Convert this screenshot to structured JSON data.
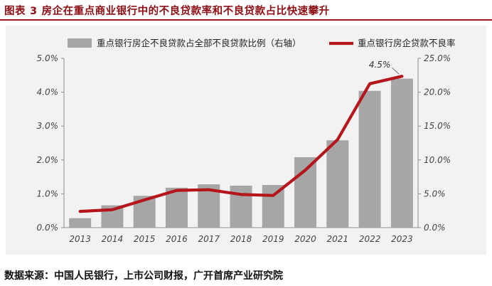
{
  "header": {
    "label": "图表",
    "number": "3",
    "title": "房企在重点商业银行中的不良贷款率和不良贷款占比快速攀升"
  },
  "source": "数据来源：中国人民银行，上市公司财报，广开首席产业研究院",
  "colors": {
    "bar": "#a6a6a6",
    "line": "#b5161c",
    "title": "#8b0e14",
    "panel": "#f2f2f2"
  },
  "chart_data": {
    "type": "bar+line",
    "categories": [
      "2013",
      "2014",
      "2015",
      "2016",
      "2017",
      "2018",
      "2019",
      "2020",
      "2021",
      "2022",
      "2023"
    ],
    "left_axis": {
      "ylim": [
        0,
        5
      ],
      "ticks": [
        "0.0%",
        "1.0%",
        "2.0%",
        "3.0%",
        "4.0%",
        "5.0%"
      ]
    },
    "right_axis": {
      "ylim": [
        0,
        25
      ],
      "ticks": [
        "0.0%",
        "5.0%",
        "10.0%",
        "15.0%",
        "20.0%",
        "25.0%"
      ]
    },
    "series": [
      {
        "name": "重点银行房企不良贷款占全部不良贷款比例（右轴）",
        "type": "bar",
        "axis": "right",
        "values": [
          1.4,
          3.3,
          4.7,
          5.9,
          6.4,
          6.2,
          6.3,
          10.4,
          12.9,
          20.2,
          22.0
        ]
      },
      {
        "name": "重点银行房企贷款不良率",
        "type": "line",
        "axis": "left",
        "values": [
          0.48,
          0.53,
          0.82,
          1.1,
          1.12,
          0.98,
          0.95,
          1.7,
          2.6,
          4.25,
          4.47
        ]
      }
    ],
    "annotations": [
      {
        "series": 1,
        "index": 10,
        "text": "4.5%"
      }
    ],
    "legend_position": "top"
  }
}
